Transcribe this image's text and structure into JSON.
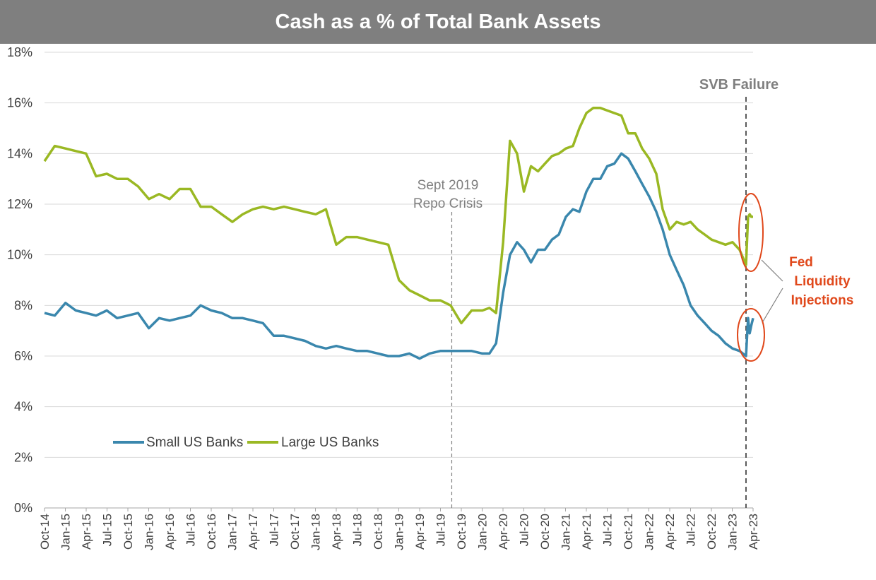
{
  "chart_data": {
    "type": "line",
    "title": "Cash as a % of Total Bank Assets",
    "ylim": [
      0,
      18
    ],
    "yticks": [
      0,
      2,
      4,
      6,
      8,
      10,
      12,
      14,
      16,
      18
    ],
    "ytick_labels": [
      "0%",
      "2%",
      "4%",
      "6%",
      "8%",
      "10%",
      "12%",
      "14%",
      "16%",
      "18%"
    ],
    "xlim": [
      "2014-10-01",
      "2023-04-01"
    ],
    "xtick_labels": [
      "Oct-14",
      "Jan-15",
      "Apr-15",
      "Jul-15",
      "Oct-15",
      "Jan-16",
      "Apr-16",
      "Jul-16",
      "Oct-16",
      "Jan-17",
      "Apr-17",
      "Jul-17",
      "Oct-17",
      "Jan-18",
      "Apr-18",
      "Jul-18",
      "Oct-18",
      "Jan-19",
      "Apr-19",
      "Jul-19",
      "Oct-19",
      "Jan-20",
      "Apr-20",
      "Jul-20",
      "Oct-20",
      "Jan-21",
      "Apr-21",
      "Jul-21",
      "Oct-21",
      "Jan-22",
      "Apr-22",
      "Jul-22",
      "Oct-22",
      "Jan-23",
      "Apr-23"
    ],
    "grid": "horizontal",
    "legend_position": "bottom-left",
    "series": [
      {
        "name": "Small US Banks",
        "color": "#3a87ad",
        "x": [
          "2014-10-01",
          "2014-11-15",
          "2015-01-01",
          "2015-02-15",
          "2015-04-01",
          "2015-05-15",
          "2015-07-01",
          "2015-08-15",
          "2015-10-01",
          "2015-11-15",
          "2016-01-01",
          "2016-02-15",
          "2016-04-01",
          "2016-05-15",
          "2016-07-01",
          "2016-08-15",
          "2016-10-01",
          "2016-11-15",
          "2017-01-01",
          "2017-02-15",
          "2017-04-01",
          "2017-05-15",
          "2017-07-01",
          "2017-08-15",
          "2017-10-01",
          "2017-11-15",
          "2018-01-01",
          "2018-02-15",
          "2018-04-01",
          "2018-05-15",
          "2018-07-01",
          "2018-08-15",
          "2018-10-01",
          "2018-11-15",
          "2019-01-01",
          "2019-02-15",
          "2019-04-01",
          "2019-05-15",
          "2019-07-01",
          "2019-08-15",
          "2019-10-01",
          "2019-11-15",
          "2020-01-01",
          "2020-02-01",
          "2020-03-01",
          "2020-04-01",
          "2020-05-01",
          "2020-06-01",
          "2020-07-01",
          "2020-08-01",
          "2020-09-01",
          "2020-10-01",
          "2020-11-01",
          "2020-12-01",
          "2021-01-01",
          "2021-02-01",
          "2021-03-01",
          "2021-04-01",
          "2021-05-01",
          "2021-06-01",
          "2021-07-01",
          "2021-08-01",
          "2021-09-01",
          "2021-10-01",
          "2021-11-01",
          "2021-12-01",
          "2022-01-01",
          "2022-02-01",
          "2022-03-01",
          "2022-04-01",
          "2022-05-01",
          "2022-06-01",
          "2022-07-01",
          "2022-08-01",
          "2022-09-01",
          "2022-10-01",
          "2022-11-01",
          "2022-12-01",
          "2023-01-01",
          "2023-02-01",
          "2023-03-01",
          "2023-03-10",
          "2023-03-17",
          "2023-03-24",
          "2023-04-01"
        ],
        "values": [
          7.7,
          7.6,
          8.1,
          7.8,
          7.7,
          7.6,
          7.8,
          7.5,
          7.6,
          7.7,
          7.1,
          7.5,
          7.4,
          7.5,
          7.6,
          8.0,
          7.8,
          7.7,
          7.5,
          7.5,
          7.4,
          7.3,
          6.8,
          6.8,
          6.7,
          6.6,
          6.4,
          6.3,
          6.4,
          6.3,
          6.2,
          6.2,
          6.1,
          6.0,
          6.0,
          6.1,
          5.9,
          6.1,
          6.2,
          6.2,
          6.2,
          6.2,
          6.1,
          6.1,
          6.5,
          8.5,
          10.0,
          10.5,
          10.2,
          9.7,
          10.2,
          10.2,
          10.6,
          10.8,
          11.5,
          11.8,
          11.7,
          12.5,
          13.0,
          13.0,
          13.5,
          13.6,
          14.0,
          13.8,
          13.3,
          12.8,
          12.3,
          11.7,
          11.0,
          10.0,
          9.4,
          8.8,
          8.0,
          7.6,
          7.3,
          7.0,
          6.8,
          6.5,
          6.3,
          6.2,
          6.0,
          7.5,
          6.9,
          7.2,
          7.5
        ]
      },
      {
        "name": "Large US Banks",
        "color": "#9ab823",
        "x": [
          "2014-10-01",
          "2014-11-15",
          "2015-01-01",
          "2015-02-15",
          "2015-04-01",
          "2015-05-15",
          "2015-07-01",
          "2015-08-15",
          "2015-10-01",
          "2015-11-15",
          "2016-01-01",
          "2016-02-15",
          "2016-04-01",
          "2016-05-15",
          "2016-07-01",
          "2016-08-15",
          "2016-10-01",
          "2016-11-15",
          "2017-01-01",
          "2017-02-15",
          "2017-04-01",
          "2017-05-15",
          "2017-07-01",
          "2017-08-15",
          "2017-10-01",
          "2017-11-15",
          "2018-01-01",
          "2018-02-15",
          "2018-04-01",
          "2018-05-15",
          "2018-07-01",
          "2018-08-15",
          "2018-10-01",
          "2018-11-15",
          "2019-01-01",
          "2019-02-15",
          "2019-04-01",
          "2019-05-15",
          "2019-07-01",
          "2019-08-15",
          "2019-10-01",
          "2019-11-15",
          "2020-01-01",
          "2020-02-01",
          "2020-03-01",
          "2020-04-01",
          "2020-05-01",
          "2020-06-01",
          "2020-07-01",
          "2020-08-01",
          "2020-09-01",
          "2020-10-01",
          "2020-11-01",
          "2020-12-01",
          "2021-01-01",
          "2021-02-01",
          "2021-03-01",
          "2021-04-01",
          "2021-05-01",
          "2021-06-01",
          "2021-07-01",
          "2021-08-01",
          "2021-09-01",
          "2021-10-01",
          "2021-11-01",
          "2021-12-01",
          "2022-01-01",
          "2022-02-01",
          "2022-03-01",
          "2022-04-01",
          "2022-05-01",
          "2022-06-01",
          "2022-07-01",
          "2022-08-01",
          "2022-09-01",
          "2022-10-01",
          "2022-11-01",
          "2022-12-01",
          "2023-01-01",
          "2023-02-01",
          "2023-03-01",
          "2023-03-10",
          "2023-03-17",
          "2023-03-24",
          "2023-04-01"
        ],
        "values": [
          13.7,
          14.3,
          14.2,
          14.1,
          14.0,
          13.1,
          13.2,
          13.0,
          13.0,
          12.7,
          12.2,
          12.4,
          12.2,
          12.6,
          12.6,
          11.9,
          11.9,
          11.6,
          11.3,
          11.6,
          11.8,
          11.9,
          11.8,
          11.9,
          11.8,
          11.7,
          11.6,
          11.8,
          10.4,
          10.7,
          10.7,
          10.6,
          10.5,
          10.4,
          9.0,
          8.6,
          8.4,
          8.2,
          8.2,
          8.0,
          7.3,
          7.8,
          7.8,
          7.9,
          7.7,
          10.5,
          14.5,
          14.0,
          12.5,
          13.5,
          13.3,
          13.6,
          13.9,
          14.0,
          14.2,
          14.3,
          15.0,
          15.6,
          15.8,
          15.8,
          15.7,
          15.6,
          15.5,
          14.8,
          14.8,
          14.2,
          13.8,
          13.2,
          11.8,
          11.0,
          11.3,
          11.2,
          11.3,
          11.0,
          10.8,
          10.6,
          10.5,
          10.4,
          10.5,
          10.2,
          9.6,
          11.5,
          11.6,
          11.5,
          11.5
        ]
      }
    ]
  },
  "annotations": {
    "repo_line1": "Sept 2019",
    "repo_line2": "Repo Crisis",
    "svb": "SVB Failure",
    "fed_line1": "Fed",
    "fed_line2": "Liquidity",
    "fed_line3": "Injections",
    "fed_color": "#e0481b"
  }
}
